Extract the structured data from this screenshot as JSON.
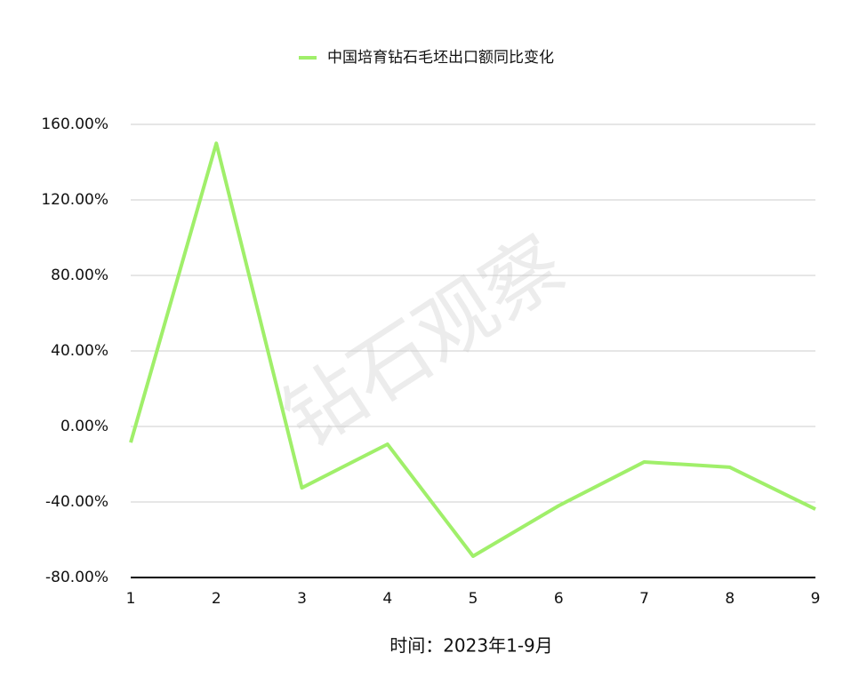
{
  "chart_data": {
    "type": "line",
    "series": [
      {
        "name": "中国培育钻石毛坯出口额同比变化",
        "color": "#a0ef6a",
        "values": [
          -8.5,
          150,
          -32.5,
          -9.4,
          -68.7,
          -42,
          -18.8,
          -21.6,
          -43.8
        ]
      }
    ],
    "x": [
      1,
      2,
      3,
      4,
      5,
      6,
      7,
      8,
      9
    ],
    "xlim": [
      1,
      9
    ],
    "xticks": [
      1,
      2,
      3,
      4,
      5,
      6,
      7,
      8,
      9
    ],
    "ylim": [
      -80,
      160
    ],
    "yticks": [
      {
        "value": -80,
        "label": "-80.00%"
      },
      {
        "value": -40,
        "label": "-40.00%"
      },
      {
        "value": 0,
        "label": "0.00%"
      },
      {
        "value": 40,
        "label": "40.00%"
      },
      {
        "value": 80,
        "label": "80.00%"
      },
      {
        "value": 120,
        "label": "120.00%"
      },
      {
        "value": 160,
        "label": "160.00%"
      }
    ],
    "x_label": "时间：2023年1-9月",
    "watermark": "钻石观察",
    "grid": true,
    "legend": "top"
  }
}
